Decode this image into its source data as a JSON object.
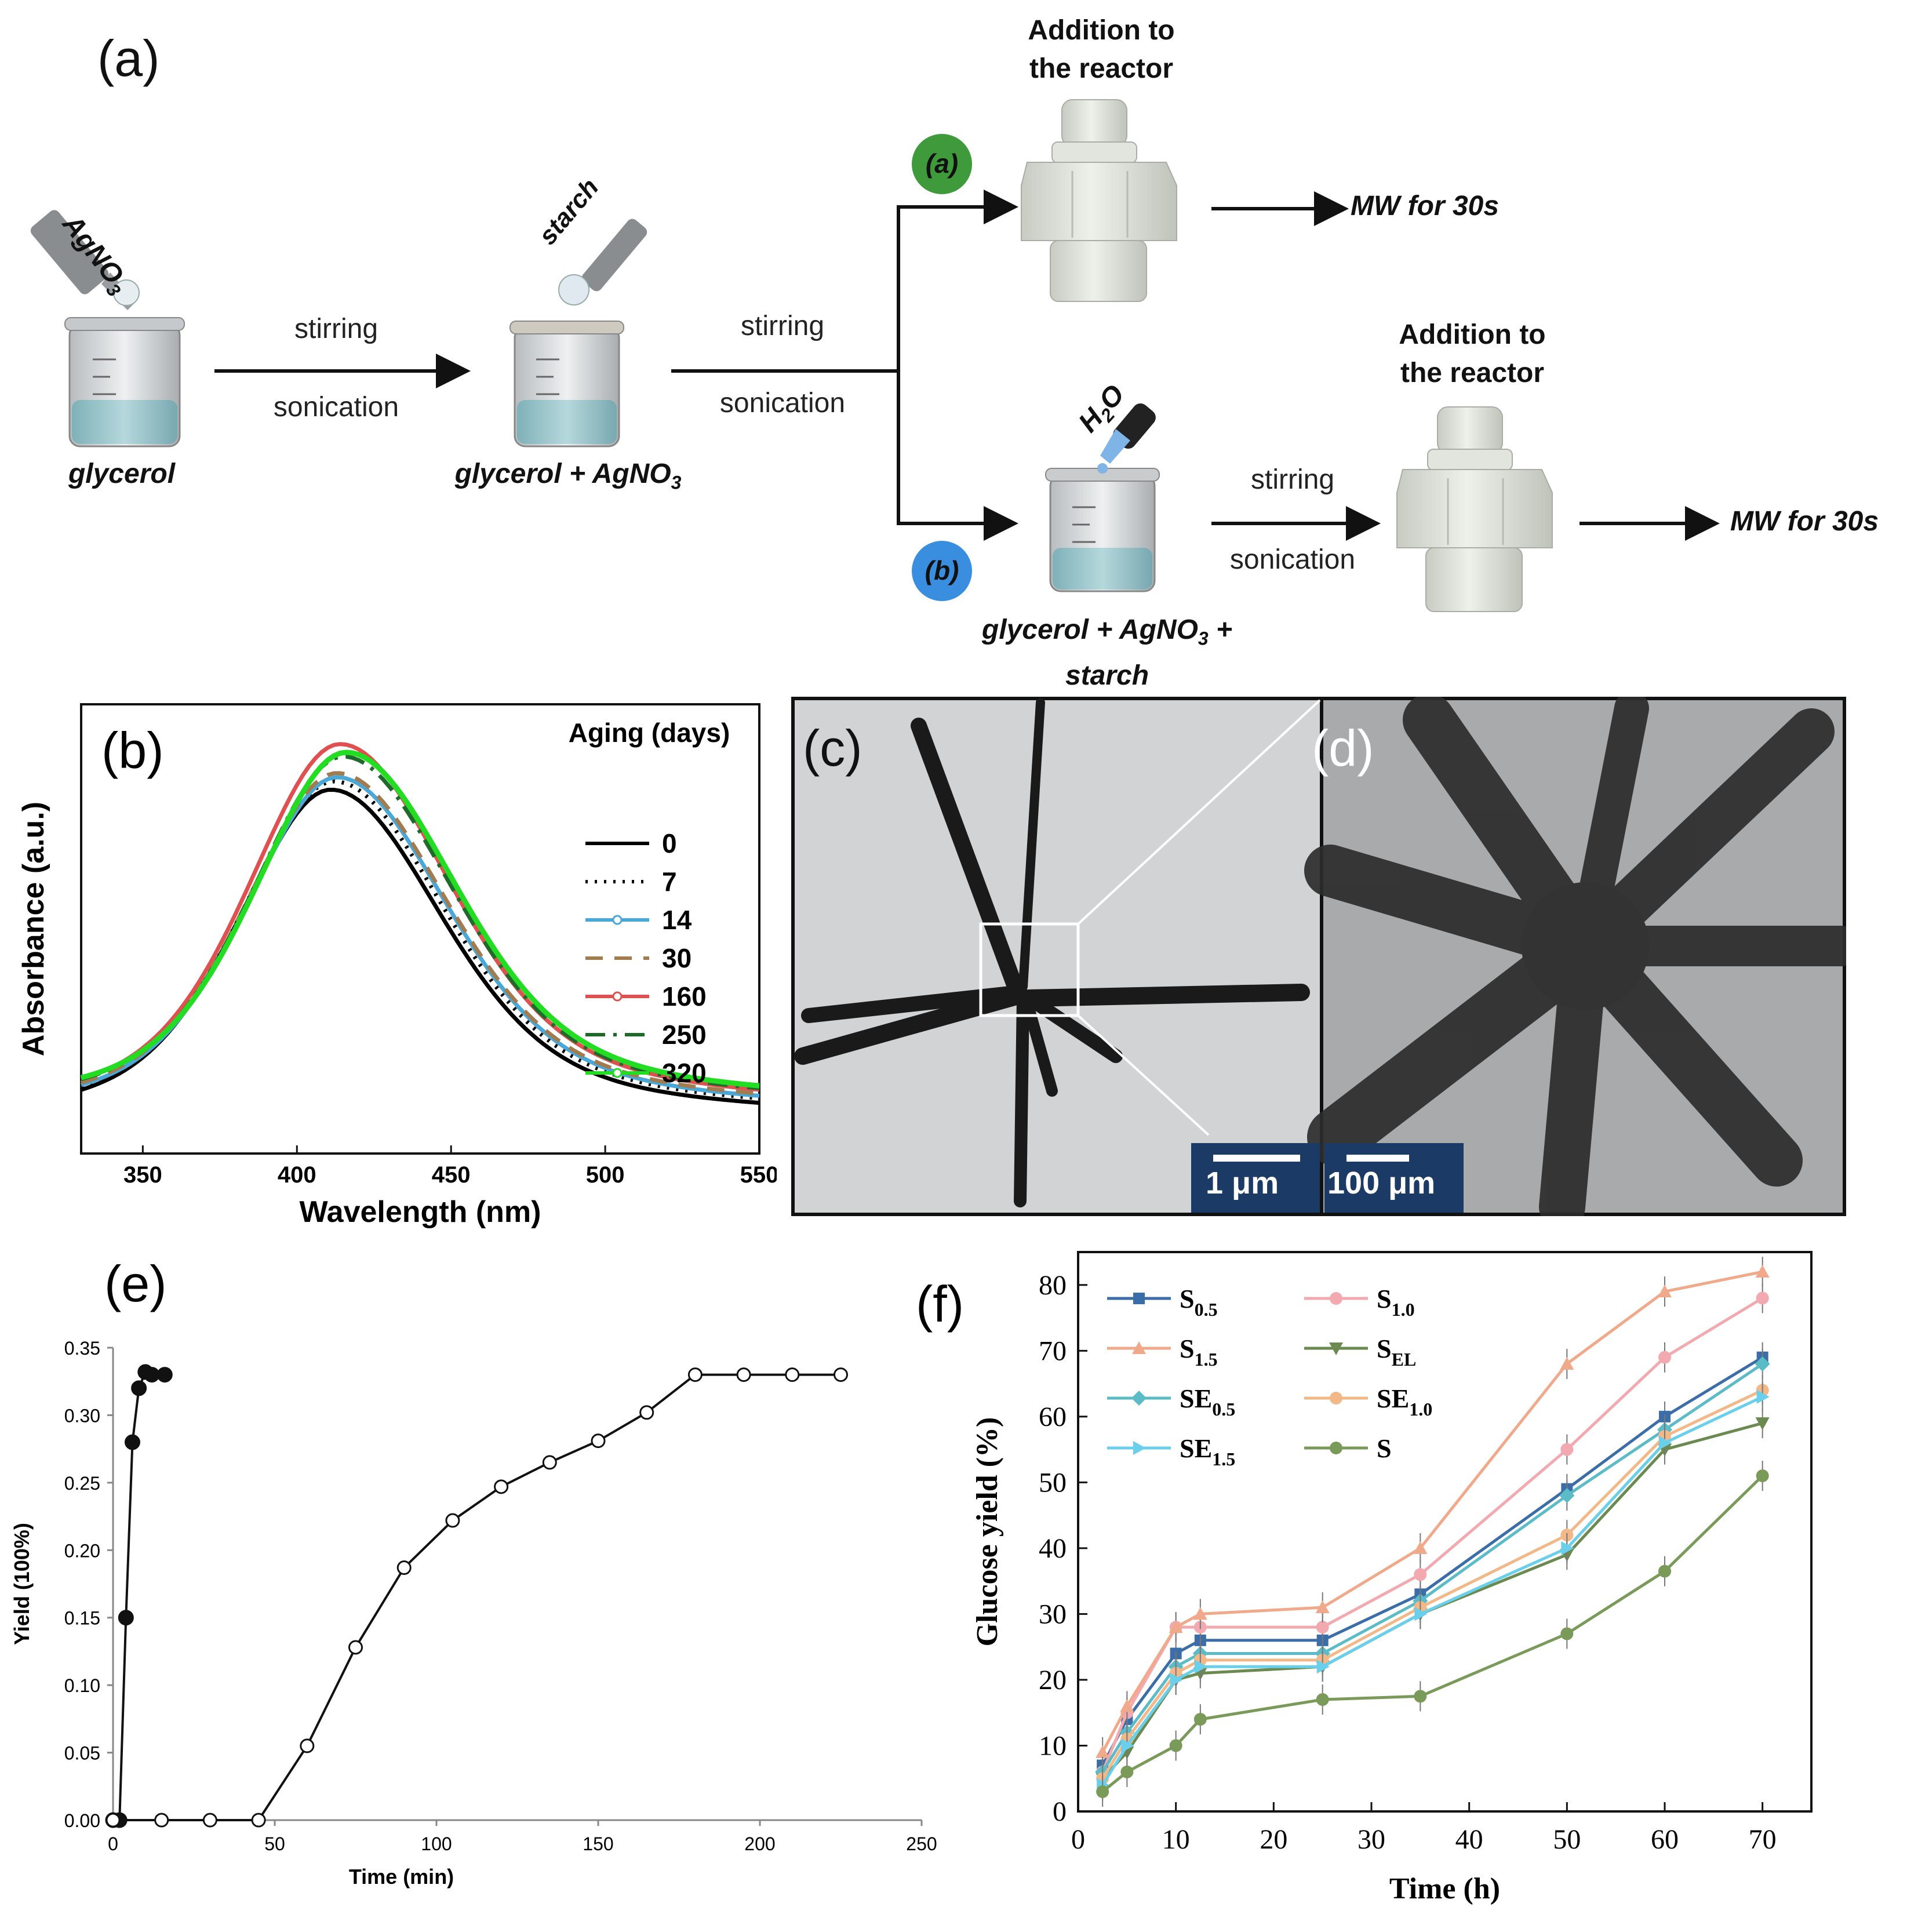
{
  "panel_a": {
    "label": "(a)",
    "reagent_top": "AgNO",
    "reagent_top_sub": "3",
    "reagent_starch": "starch",
    "reagent_water": "H",
    "reagent_water_sub": "2",
    "reagent_water_tail": "O",
    "beaker1_caption": "glycerol",
    "beaker2_caption": "glycerol + AgNO",
    "beaker2_caption_sub": "3",
    "beaker3_caption_line1": "glycerol + AgNO",
    "beaker3_caption_sub": "3",
    "beaker3_caption_plus": " +",
    "beaker3_caption_line2": "starch",
    "step_top": "stirring",
    "step_bottom": "sonication",
    "route_a": "(a)",
    "route_b": "(b)",
    "reactor_label_line1": "Addition to",
    "reactor_label_line2": "the reactor",
    "mw_label": "MW for 30s",
    "colors": {
      "route_a": "#3f9a3b",
      "route_b": "#3a8ee0",
      "liquid": "#9cc6cc",
      "reactor": "#d9ddd5"
    }
  },
  "panel_b": {
    "label": "(b)",
    "chart_data": {
      "type": "line",
      "xlabel": "Wavelength (nm)",
      "ylabel": "Absorbance (a.u.)",
      "xlim": [
        330,
        550
      ],
      "xticks": [
        350,
        400,
        450,
        500,
        550
      ],
      "legend_title": "Aging (days)",
      "legend_position": "top-right",
      "series": [
        {
          "name": "0",
          "color": "#000000",
          "style": "solid",
          "peak_x": 411,
          "peak_y": 0.85,
          "tail_y": 0.05
        },
        {
          "name": "7",
          "color": "#000000",
          "style": "dotted",
          "peak_x": 412,
          "peak_y": 0.87,
          "tail_y": 0.06
        },
        {
          "name": "14",
          "color": "#4aa8d8",
          "style": "solid-marker",
          "peak_x": 413,
          "peak_y": 0.88,
          "tail_y": 0.065
        },
        {
          "name": "30",
          "color": "#a07c50",
          "style": "dashed",
          "peak_x": 413,
          "peak_y": 0.89,
          "tail_y": 0.07
        },
        {
          "name": "160",
          "color": "#e05050",
          "style": "solid-marker",
          "peak_x": 414,
          "peak_y": 0.96,
          "tail_y": 0.075
        },
        {
          "name": "250",
          "color": "#1f6a2a",
          "style": "dashdot",
          "peak_x": 415,
          "peak_y": 0.93,
          "tail_y": 0.08
        },
        {
          "name": "320",
          "color": "#22dd22",
          "style": "solid-marker",
          "peak_x": 416,
          "peak_y": 0.94,
          "tail_y": 0.085
        }
      ]
    }
  },
  "panel_c": {
    "label": "(c)",
    "scale": "1 μm"
  },
  "panel_d": {
    "label": "(d)",
    "scale": "100 μm"
  },
  "panel_e": {
    "label": "(e)",
    "chart_data": {
      "type": "scatter",
      "xlabel": "Time (min)",
      "ylabel": "Yield (100%)",
      "xlim": [
        0,
        250
      ],
      "ylim": [
        0,
        0.35
      ],
      "xticks": [
        0,
        50,
        100,
        150,
        200,
        250
      ],
      "yticks": [
        "0.00",
        "0.05",
        "0.10",
        "0.15",
        "0.20",
        "0.25",
        "0.30",
        "0.35"
      ],
      "series": [
        {
          "marker": "filled",
          "x": [
            0,
            2,
            4,
            6,
            8,
            10,
            12,
            16
          ],
          "y": [
            0.0,
            0.0,
            0.15,
            0.28,
            0.32,
            0.332,
            0.33,
            0.33
          ]
        },
        {
          "marker": "open",
          "x": [
            0,
            15,
            30,
            45,
            60,
            75,
            90,
            105,
            120,
            135,
            150,
            165,
            180,
            195,
            210,
            225
          ],
          "y": [
            0.0,
            0.0,
            0.0,
            0.0,
            0.055,
            0.128,
            0.187,
            0.222,
            0.247,
            0.265,
            0.281,
            0.302,
            0.33,
            0.33,
            0.33,
            0.33
          ]
        }
      ]
    }
  },
  "panel_f": {
    "label": "(f)",
    "chart_data": {
      "type": "line",
      "xlabel": "Time (h)",
      "ylabel": "Glucose yield (%)",
      "xlim": [
        0,
        75
      ],
      "ylim": [
        0,
        85
      ],
      "xticks": [
        0,
        10,
        20,
        30,
        40,
        50,
        60,
        70
      ],
      "yticks": [
        0,
        10,
        20,
        30,
        40,
        50,
        60,
        70,
        80
      ],
      "x": [
        2.5,
        5,
        10,
        12.5,
        25,
        35,
        50,
        60,
        70
      ],
      "series": [
        {
          "name": "S",
          "sub": "0.5",
          "color": "#3b6ea8",
          "marker": "square",
          "values": [
            7,
            14,
            24,
            26,
            26,
            33,
            49,
            60,
            69
          ]
        },
        {
          "name": "S",
          "sub": "1.0",
          "color": "#f2aab0",
          "marker": "circle",
          "values": [
            6,
            15,
            28,
            28,
            28,
            36,
            55,
            69,
            78
          ]
        },
        {
          "name": "S",
          "sub": "1.5",
          "color": "#f0a98a",
          "marker": "triangle",
          "values": [
            9,
            16,
            28,
            30,
            31,
            40,
            68,
            79,
            82
          ]
        },
        {
          "name": "S",
          "sub": "EL",
          "color": "#6b8a50",
          "marker": "triangle-down",
          "values": [
            5,
            9,
            20,
            21,
            22,
            30,
            39,
            55,
            59
          ]
        },
        {
          "name": "SE",
          "sub": "0.5",
          "color": "#5bbcc8",
          "marker": "diamond",
          "values": [
            6,
            12,
            22,
            24,
            24,
            32,
            48,
            58,
            68
          ]
        },
        {
          "name": "SE",
          "sub": "1.0",
          "color": "#f2b888",
          "marker": "pentagon",
          "values": [
            5,
            11,
            21,
            23,
            23,
            31,
            42,
            57,
            64
          ]
        },
        {
          "name": "SE",
          "sub": "1.5",
          "color": "#69cfea",
          "marker": "triangle-right",
          "values": [
            4,
            10,
            20,
            22,
            22,
            30,
            40,
            56,
            63
          ]
        },
        {
          "name": "S",
          "sub": "",
          "color": "#7a9a5a",
          "marker": "circle",
          "values": [
            3,
            6,
            10,
            14,
            17,
            17.5,
            27,
            36.5,
            51
          ]
        }
      ]
    }
  }
}
